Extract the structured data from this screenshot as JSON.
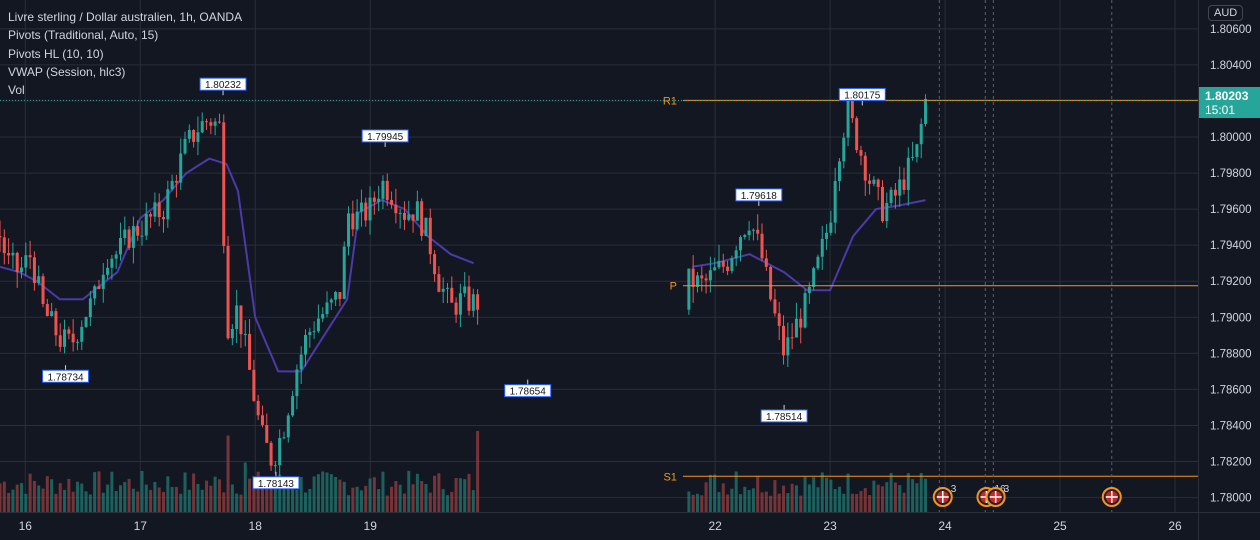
{
  "legend": {
    "symbol": "Livre sterling / Dollar australien, 1h, OANDA",
    "pivots": "Pivots (Traditional, Auto, 15)",
    "pivots_hl": "Pivots HL (10, 10)",
    "vwap": "VWAP (Session, hlc3)",
    "vol": "Vol"
  },
  "currency_badge": "AUD",
  "last_price": {
    "value": 1.80203,
    "label": "1.80203",
    "countdown": "15:01"
  },
  "colors": {
    "background": "#131722",
    "grid": "#2a2e39",
    "up": "#26a69a",
    "down": "#ef5350",
    "vol_up": "#1f6f69",
    "vol_down": "#8a3a3c",
    "vwap": "#4b3aa8",
    "pivot_line": "#f7931a",
    "text": "#d1d4dc"
  },
  "chart_data": {
    "type": "candlestick",
    "instrument": "GBP/AUD",
    "timeframe": "1h",
    "ylim": [
      1.7792,
      1.8076
    ],
    "xlim": [
      15.78,
      26.2
    ],
    "x_ticks": [
      16,
      17,
      18,
      19,
      22,
      23,
      24,
      25,
      26
    ],
    "x_tick_labels": [
      "16",
      "17",
      "18",
      "19",
      "22",
      "23",
      "24",
      "25",
      "26"
    ],
    "y_ticks": [
      1.78,
      1.782,
      1.784,
      1.786,
      1.788,
      1.79,
      1.792,
      1.794,
      1.796,
      1.798,
      1.8,
      1.802,
      1.804,
      1.806
    ],
    "y_tick_labels": [
      "1.78000",
      "1.78200",
      "1.78400",
      "1.78600",
      "1.78800",
      "1.79000",
      "1.79200",
      "1.79400",
      "1.79600",
      "1.79800",
      "1.80000",
      "1.80200",
      "1.80400",
      "1.80600"
    ],
    "grid": true,
    "session_x": [
      15.78,
      16.8,
      17.8,
      18.8,
      21.8,
      22.8,
      23.83
    ],
    "anchors": [
      [
        15.78,
        1.7945
      ],
      [
        15.85,
        1.793
      ],
      [
        15.95,
        1.7925
      ],
      [
        16.05,
        1.7935
      ],
      [
        16.15,
        1.7905
      ],
      [
        16.3,
        1.7888
      ],
      [
        16.4,
        1.7885
      ],
      [
        16.5,
        1.79
      ],
      [
        16.6,
        1.791
      ],
      [
        16.7,
        1.7935
      ],
      [
        16.8,
        1.7935
      ],
      [
        16.9,
        1.7945
      ],
      [
        17.0,
        1.795
      ],
      [
        17.1,
        1.7955
      ],
      [
        17.2,
        1.796
      ],
      [
        17.3,
        1.7978
      ],
      [
        17.4,
        1.7995
      ],
      [
        17.5,
        1.8005
      ],
      [
        17.6,
        1.801
      ],
      [
        17.7,
        1.8005
      ],
      [
        17.75,
        1.7895
      ],
      [
        17.85,
        1.7905
      ],
      [
        17.95,
        1.787
      ],
      [
        18.05,
        1.7835
      ],
      [
        18.15,
        1.782
      ],
      [
        18.25,
        1.784
      ],
      [
        18.35,
        1.787
      ],
      [
        18.45,
        1.789
      ],
      [
        18.55,
        1.79
      ],
      [
        18.65,
        1.7905
      ],
      [
        18.75,
        1.7915
      ],
      [
        18.8,
        1.7958
      ],
      [
        18.9,
        1.7955
      ],
      [
        19.0,
        1.796
      ],
      [
        19.1,
        1.7975
      ],
      [
        19.2,
        1.7968
      ],
      [
        19.3,
        1.7958
      ],
      [
        19.4,
        1.796
      ],
      [
        19.5,
        1.7945
      ],
      [
        19.6,
        1.792
      ],
      [
        19.7,
        1.7905
      ],
      [
        19.8,
        1.791
      ],
      [
        19.9,
        1.7908
      ],
      [
        21.8,
        1.792
      ],
      [
        21.9,
        1.7918
      ],
      [
        22.0,
        1.7925
      ],
      [
        22.1,
        1.793
      ],
      [
        22.2,
        1.7945
      ],
      [
        22.3,
        1.7955
      ],
      [
        22.4,
        1.7935
      ],
      [
        22.5,
        1.7905
      ],
      [
        22.6,
        1.788
      ],
      [
        22.7,
        1.7895
      ],
      [
        22.8,
        1.7908
      ],
      [
        22.9,
        1.793
      ],
      [
        23.0,
        1.7955
      ],
      [
        23.05,
        1.7985
      ],
      [
        23.15,
        1.8015
      ],
      [
        23.25,
        1.7995
      ],
      [
        23.35,
        1.7975
      ],
      [
        23.45,
        1.796
      ],
      [
        23.55,
        1.7965
      ],
      [
        23.65,
        1.7978
      ],
      [
        23.75,
        1.799
      ],
      [
        23.83,
        1.802
      ]
    ],
    "vwap_points": [
      [
        15.78,
        1.7928
      ],
      [
        15.95,
        1.7925
      ],
      [
        16.1,
        1.792
      ],
      [
        16.3,
        1.791
      ],
      [
        16.5,
        1.791
      ],
      [
        16.7,
        1.792
      ],
      [
        16.8,
        1.7925
      ],
      [
        17.0,
        1.7955
      ],
      [
        17.2,
        1.7965
      ],
      [
        17.4,
        1.798
      ],
      [
        17.6,
        1.7988
      ],
      [
        17.75,
        1.7985
      ],
      [
        17.85,
        1.797
      ],
      [
        18.0,
        1.79
      ],
      [
        18.2,
        1.787
      ],
      [
        18.4,
        1.787
      ],
      [
        18.6,
        1.789
      ],
      [
        18.8,
        1.791
      ],
      [
        18.9,
        1.7958
      ],
      [
        19.1,
        1.7965
      ],
      [
        19.3,
        1.796
      ],
      [
        19.5,
        1.7945
      ],
      [
        19.7,
        1.7935
      ],
      [
        19.9,
        1.793
      ],
      [
        21.8,
        1.7928
      ],
      [
        22.0,
        1.793
      ],
      [
        22.3,
        1.7935
      ],
      [
        22.6,
        1.7925
      ],
      [
        22.8,
        1.7915
      ],
      [
        23.0,
        1.7915
      ],
      [
        23.2,
        1.7945
      ],
      [
        23.4,
        1.796
      ],
      [
        23.6,
        1.7962
      ],
      [
        23.83,
        1.7965
      ]
    ],
    "pivot_levels": [
      {
        "name": "R1",
        "value": 1.80203,
        "x_start": 21.72
      },
      {
        "name": "P",
        "value": 1.79175,
        "x_start": 21.72
      },
      {
        "name": "S1",
        "value": 1.78118,
        "x_start": 21.72
      }
    ],
    "high_low_labels": [
      {
        "label": "1.80232",
        "x": 17.72,
        "value": 1.80232,
        "kind": "high"
      },
      {
        "label": "1.79945",
        "x": 19.13,
        "value": 1.79945,
        "kind": "high"
      },
      {
        "label": "1.79618",
        "x": 22.38,
        "value": 1.79618,
        "kind": "high"
      },
      {
        "label": "1.80175",
        "x": 23.28,
        "value": 1.80175,
        "kind": "high"
      },
      {
        "label": "1.78734",
        "x": 16.35,
        "value": 1.78734,
        "kind": "low"
      },
      {
        "label": "1.78143",
        "x": 18.18,
        "value": 1.78143,
        "kind": "low"
      },
      {
        "label": "1.78654",
        "x": 20.37,
        "value": 1.78654,
        "kind": "low"
      },
      {
        "label": "1.78514",
        "x": 22.6,
        "value": 1.78514,
        "kind": "low"
      }
    ],
    "future_markers": [
      23.95,
      24.35,
      24.42,
      25.45
    ],
    "event_markers": [
      {
        "x": 23.98,
        "count": "3"
      },
      {
        "x": 24.36,
        "count": "16"
      },
      {
        "x": 24.44,
        "count": "3"
      },
      {
        "x": 25.45,
        "count": ""
      }
    ],
    "spike_volumes": [
      [
        17.75,
        0.85
      ],
      [
        20.27,
        0.9
      ],
      [
        17.9,
        0.55
      ],
      [
        22.2,
        0.45
      ]
    ],
    "candle_count": 168
  }
}
